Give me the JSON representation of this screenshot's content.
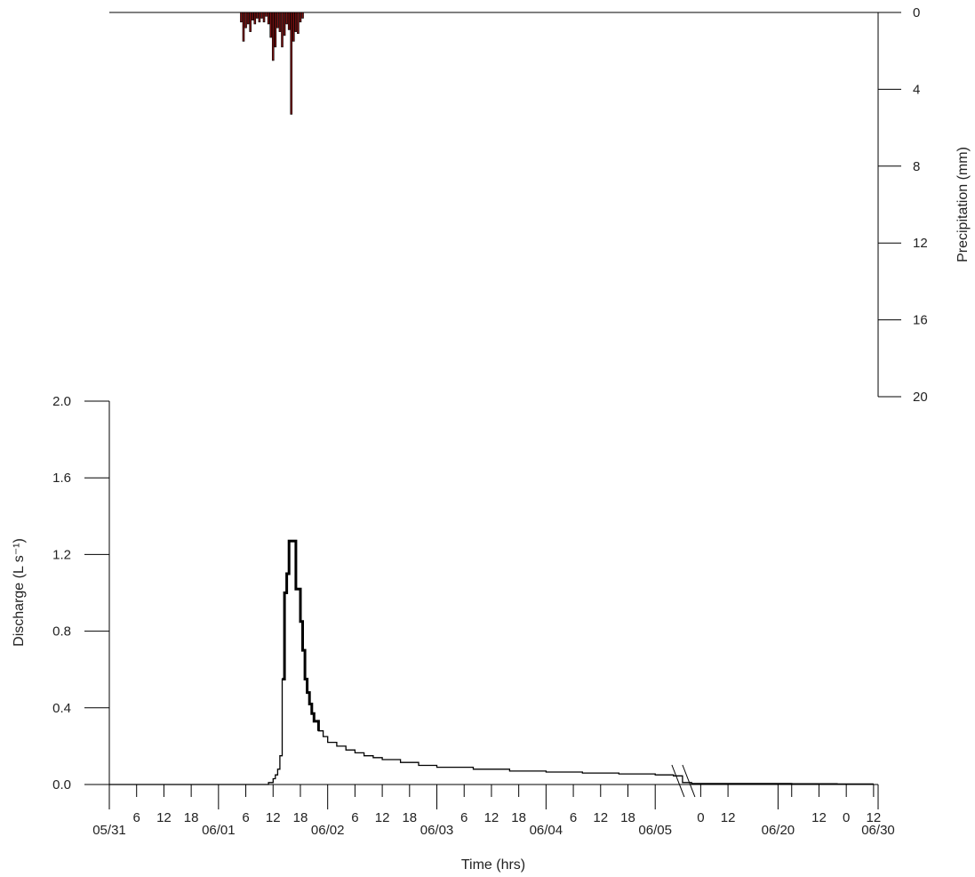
{
  "chart_data": [
    {
      "type": "bar",
      "title": "",
      "ylabel": "Precipitation (mm)",
      "y_axis_side": "right",
      "inverted": true,
      "ylim": [
        0,
        20
      ],
      "yticks": [
        0,
        4,
        8,
        12,
        16,
        20
      ],
      "bar_color": "#7a1010",
      "bars": [
        {
          "t": 29.0,
          "v": 0.5
        },
        {
          "t": 29.5,
          "v": 1.5
        },
        {
          "t": 30.0,
          "v": 0.8
        },
        {
          "t": 30.5,
          "v": 0.6
        },
        {
          "t": 31.0,
          "v": 1.0
        },
        {
          "t": 31.5,
          "v": 0.4
        },
        {
          "t": 32.0,
          "v": 0.6
        },
        {
          "t": 32.5,
          "v": 0.3
        },
        {
          "t": 33.0,
          "v": 0.5
        },
        {
          "t": 33.5,
          "v": 0.3
        },
        {
          "t": 34.0,
          "v": 0.5
        },
        {
          "t": 34.5,
          "v": 0.2
        },
        {
          "t": 35.0,
          "v": 0.6
        },
        {
          "t": 35.5,
          "v": 1.3
        },
        {
          "t": 36.0,
          "v": 2.5
        },
        {
          "t": 36.5,
          "v": 1.8
        },
        {
          "t": 37.0,
          "v": 0.8
        },
        {
          "t": 37.5,
          "v": 1.0
        },
        {
          "t": 38.0,
          "v": 1.8
        },
        {
          "t": 38.5,
          "v": 1.2
        },
        {
          "t": 39.0,
          "v": 0.6
        },
        {
          "t": 39.5,
          "v": 0.9
        },
        {
          "t": 40.0,
          "v": 5.3
        },
        {
          "t": 40.5,
          "v": 1.5
        },
        {
          "t": 41.0,
          "v": 1.0
        },
        {
          "t": 41.5,
          "v": 1.1
        },
        {
          "t": 42.0,
          "v": 0.5
        },
        {
          "t": 42.5,
          "v": 0.3
        }
      ]
    },
    {
      "type": "line",
      "title": "",
      "xlabel": "Time (hrs)",
      "ylabel": "Discharge (L s⁻¹)",
      "ylim": [
        0,
        2.0
      ],
      "yticks": [
        "0.0",
        "0.4",
        "0.8",
        "1.2",
        "1.6",
        "2.0"
      ],
      "line_color": "#000000",
      "axis_break": "between 06/05 and 0 (06/20 period)",
      "x_major_ticks": [
        {
          "t": 0,
          "label": "05/31"
        },
        {
          "t": 24,
          "label": "06/01"
        },
        {
          "t": 48,
          "label": "06/02"
        },
        {
          "t": 72,
          "label": "06/03"
        },
        {
          "t": 96,
          "label": "06/04"
        },
        {
          "t": 120,
          "label": "06/05"
        },
        {
          "t": 147,
          "label": "06/20"
        },
        {
          "t": 169,
          "label": "06/30"
        }
      ],
      "x_minor_ticks": [
        {
          "t": 6,
          "label": "6"
        },
        {
          "t": 12,
          "label": "12"
        },
        {
          "t": 18,
          "label": "18"
        },
        {
          "t": 30,
          "label": "6"
        },
        {
          "t": 36,
          "label": "12"
        },
        {
          "t": 42,
          "label": "18"
        },
        {
          "t": 54,
          "label": "6"
        },
        {
          "t": 60,
          "label": "12"
        },
        {
          "t": 66,
          "label": "18"
        },
        {
          "t": 78,
          "label": "6"
        },
        {
          "t": 84,
          "label": "12"
        },
        {
          "t": 90,
          "label": "18"
        },
        {
          "t": 102,
          "label": "6"
        },
        {
          "t": 108,
          "label": "12"
        },
        {
          "t": 114,
          "label": "18"
        },
        {
          "t": 130,
          "label": "0"
        },
        {
          "t": 136,
          "label": "12"
        },
        {
          "t": 150,
          "label": ""
        },
        {
          "t": 156,
          "label": "12"
        },
        {
          "t": 162,
          "label": "0"
        },
        {
          "t": 168,
          "label": "12"
        }
      ],
      "series": [
        {
          "x": [
            0,
            34,
            35,
            36,
            36.5,
            37,
            37.5,
            38,
            38.5,
            39,
            39.5,
            40,
            40.5,
            41,
            41.5,
            42,
            42.5,
            43,
            43.5,
            44,
            44.5,
            45,
            46,
            47,
            48,
            50,
            52,
            54,
            56,
            58,
            60,
            64,
            68,
            72,
            80,
            88,
            96,
            104,
            112,
            120,
            124,
            126,
            128,
            130,
            140,
            150,
            160,
            168
          ],
          "y": [
            0,
            0,
            0.01,
            0.03,
            0.05,
            0.08,
            0.15,
            0.55,
            1.0,
            1.1,
            1.27,
            1.27,
            1.27,
            1.02,
            1.02,
            0.85,
            0.7,
            0.55,
            0.48,
            0.42,
            0.37,
            0.33,
            0.28,
            0.25,
            0.22,
            0.2,
            0.18,
            0.165,
            0.15,
            0.14,
            0.13,
            0.115,
            0.1,
            0.09,
            0.08,
            0.07,
            0.065,
            0.06,
            0.055,
            0.05,
            0.045,
            0.01,
            0.005,
            0.005,
            0.005,
            0.004,
            0.003,
            0.003
          ]
        }
      ]
    }
  ]
}
